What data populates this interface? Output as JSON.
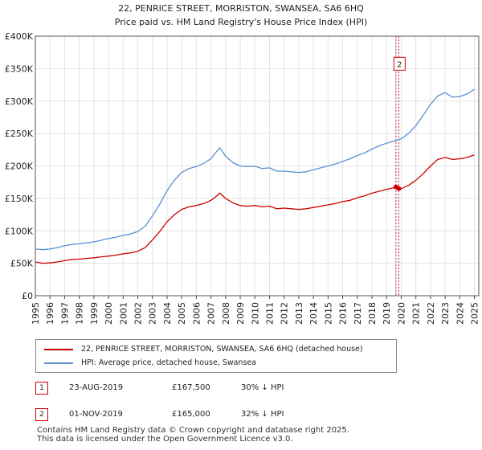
{
  "chart_data": {
    "type": "line",
    "title": "22, PENRICE STREET, MORRISTON, SWANSEA, SA6 6HQ",
    "subtitle": "Price paid vs. HM Land Registry's House Price Index (HPI)",
    "xlabel": "",
    "ylabel": "",
    "xlim": [
      1995,
      2025.3
    ],
    "ylim": [
      0,
      400000
    ],
    "y_ticks": [
      0,
      50000,
      100000,
      150000,
      200000,
      250000,
      300000,
      350000,
      400000
    ],
    "y_tick_labels": [
      "£0",
      "£50K",
      "£100K",
      "£150K",
      "£200K",
      "£250K",
      "£300K",
      "£350K",
      "£400K"
    ],
    "x_ticks": [
      1995,
      1996,
      1997,
      1998,
      1999,
      2000,
      2001,
      2002,
      2003,
      2004,
      2005,
      2006,
      2007,
      2008,
      2009,
      2010,
      2011,
      2012,
      2013,
      2014,
      2015,
      2016,
      2017,
      2018,
      2019,
      2020,
      2021,
      2022,
      2023,
      2024,
      2025
    ],
    "x_tick_labels": [
      "1995",
      "1996",
      "1997",
      "1998",
      "1999",
      "2000",
      "2001",
      "2002",
      "2003",
      "2004",
      "2005",
      "2006",
      "2007",
      "2008",
      "2009",
      "2010",
      "2011",
      "2012",
      "2013",
      "2014",
      "2015",
      "2016",
      "2017",
      "2018",
      "2019",
      "2020",
      "2021",
      "2022",
      "2023",
      "2024",
      "2025"
    ],
    "grid": true,
    "series": [
      {
        "name": "22, PENRICE STREET, MORRISTON, SWANSEA, SA6 6HQ (detached house)",
        "color": "#cc0000",
        "x": [
          1995.0,
          1995.5,
          1996.0,
          1996.5,
          1997.0,
          1997.5,
          1998.0,
          1998.5,
          1999.0,
          1999.5,
          2000.0,
          2000.5,
          2001.0,
          2001.5,
          2002.0,
          2002.5,
          2003.0,
          2003.5,
          2004.0,
          2004.5,
          2005.0,
          2005.5,
          2006.0,
          2006.5,
          2007.0,
          2007.3,
          2007.6,
          2008.0,
          2008.5,
          2009.0,
          2009.5,
          2010.0,
          2010.5,
          2011.0,
          2011.5,
          2012.0,
          2012.5,
          2013.0,
          2013.5,
          2014.0,
          2014.5,
          2015.0,
          2015.5,
          2016.0,
          2016.5,
          2017.0,
          2017.5,
          2018.0,
          2018.5,
          2019.0,
          2019.4,
          2019.65,
          2019.84,
          2020.0,
          2020.5,
          2021.0,
          2021.5,
          2022.0,
          2022.5,
          2023.0,
          2023.5,
          2024.0,
          2024.5,
          2025.0
        ],
        "values": [
          52000,
          50000,
          50500,
          52000,
          54000,
          56000,
          56500,
          57500,
          58500,
          60000,
          61000,
          62500,
          64500,
          66000,
          68500,
          74000,
          86000,
          99000,
          114000,
          125000,
          133000,
          137000,
          139000,
          142000,
          147000,
          152000,
          158000,
          150000,
          143000,
          139000,
          138000,
          139000,
          137000,
          138000,
          134000,
          135000,
          134000,
          133000,
          134000,
          136000,
          138000,
          140000,
          142000,
          145000,
          147000,
          151000,
          154000,
          158000,
          161000,
          164000,
          166000,
          167500,
          165000,
          165000,
          170000,
          178000,
          188000,
          200000,
          210000,
          213000,
          210000,
          211000,
          213000,
          217000
        ]
      },
      {
        "name": "HPI: Average price, detached house, Swansea",
        "color": "#5b8fd6",
        "x": [
          1995.0,
          1995.5,
          1996.0,
          1996.5,
          1997.0,
          1997.5,
          1998.0,
          1998.5,
          1999.0,
          1999.5,
          2000.0,
          2000.5,
          2001.0,
          2001.5,
          2002.0,
          2002.5,
          2003.0,
          2003.5,
          2004.0,
          2004.5,
          2005.0,
          2005.5,
          2006.0,
          2006.5,
          2007.0,
          2007.3,
          2007.6,
          2008.0,
          2008.5,
          2009.0,
          2009.5,
          2010.0,
          2010.5,
          2011.0,
          2011.5,
          2012.0,
          2012.5,
          2013.0,
          2013.5,
          2014.0,
          2014.5,
          2015.0,
          2015.5,
          2016.0,
          2016.5,
          2017.0,
          2017.5,
          2018.0,
          2018.5,
          2019.0,
          2019.5,
          2020.0,
          2020.5,
          2021.0,
          2021.5,
          2022.0,
          2022.5,
          2023.0,
          2023.5,
          2024.0,
          2024.5,
          2025.0
        ],
        "values": [
          72000,
          71000,
          72000,
          74000,
          77000,
          79000,
          80000,
          81500,
          83000,
          85500,
          88000,
          90000,
          93000,
          95000,
          99000,
          107000,
          123000,
          141000,
          162000,
          178000,
          190000,
          196000,
          199000,
          204000,
          211000,
          220000,
          228000,
          215000,
          205000,
          200000,
          199000,
          199500,
          196000,
          197000,
          192000,
          192000,
          191000,
          190000,
          191000,
          194000,
          197000,
          200000,
          203000,
          207000,
          211000,
          216000,
          220000,
          226000,
          231000,
          235000,
          238000,
          242000,
          250000,
          262000,
          278000,
          295000,
          308000,
          313000,
          306000,
          307000,
          311000,
          318000
        ]
      }
    ],
    "events": [
      {
        "label": "1",
        "x": 2019.64
      },
      {
        "label": "2",
        "x": 2019.83
      }
    ]
  },
  "legend": {
    "items": [
      {
        "label": "22, PENRICE STREET, MORRISTON, SWANSEA, SA6 6HQ (detached house)",
        "color": "#cc0000"
      },
      {
        "label": "HPI: Average price, detached house, Swansea",
        "color": "#5b8fd6"
      }
    ]
  },
  "transactions": [
    {
      "num": "1",
      "date": "23-AUG-2019",
      "price": "£167,500",
      "hpi": "30% ↓ HPI"
    },
    {
      "num": "2",
      "date": "01-NOV-2019",
      "price": "£165,000",
      "hpi": "32% ↓ HPI"
    }
  ],
  "footer": {
    "line1": "Contains HM Land Registry data © Crown copyright and database right 2025.",
    "line2": "This data is licensed under the Open Government Licence v3.0."
  }
}
